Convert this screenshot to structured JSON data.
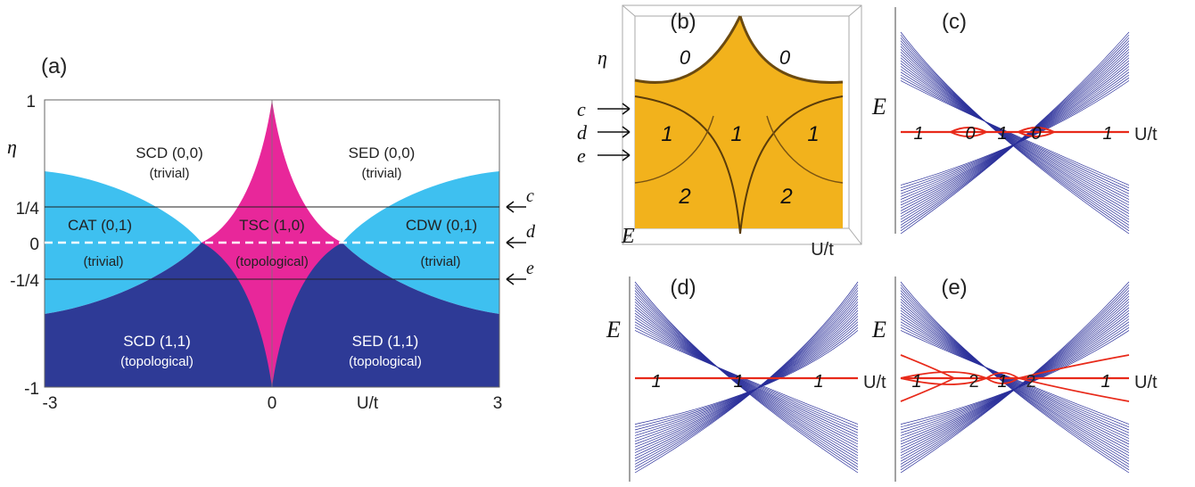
{
  "panel_a": {
    "label": "(a)",
    "y_axis_label": "η",
    "x_axis_label": "U/t",
    "y_ticks": [
      "1",
      "1/4",
      "0",
      "-1/4",
      "-1"
    ],
    "x_ticks": [
      "-3",
      "0",
      "3"
    ],
    "regions": {
      "scd00": {
        "name": "SCD (0,0)",
        "kind": "(trivial)"
      },
      "sed00": {
        "name": "SED (0,0)",
        "kind": "(trivial)"
      },
      "cat": {
        "name": "CAT (0,1)",
        "kind": "(trivial)"
      },
      "tsc": {
        "name": "TSC (1,0)",
        "kind": "(topological)"
      },
      "cdw": {
        "name": "CDW (0,1)",
        "kind": "(trivial)"
      },
      "scd11": {
        "name": "SCD (1,1)",
        "kind": "(topological)"
      },
      "sed11": {
        "name": "SED (1,1)",
        "kind": "(topological)"
      }
    },
    "markers": [
      "c",
      "d",
      "e"
    ],
    "colors": {
      "light_blue": "#3ec0f0",
      "dark_blue": "#2e3a96",
      "magenta": "#e8279a",
      "white": "#ffffff"
    }
  },
  "panel_b": {
    "label": "(b)",
    "y_axis_label": "η",
    "e_label": "E",
    "x_label": "U/t",
    "arrows": [
      "c",
      "d",
      "e"
    ],
    "numbers": {
      "top_left": "0",
      "top_right": "0",
      "mid_left": "1",
      "mid_center": "1",
      "mid_right": "1",
      "bot_left": "2",
      "bot_right": "2"
    },
    "colors": {
      "gold": "#f2b21c",
      "edge": "#6b4a10"
    }
  },
  "panel_c": {
    "label": "(c)",
    "y_label": "E",
    "x_label": "U/t",
    "numbers": [
      "1",
      "0",
      "1",
      "0",
      "1"
    ]
  },
  "panel_d": {
    "label": "(d)",
    "y_label": "E",
    "x_label": "U/t",
    "numbers": [
      "1",
      "1",
      "1"
    ]
  },
  "panel_e": {
    "label": "(e)",
    "y_label": "E",
    "x_label": "U/t",
    "numbers": [
      "1",
      "2",
      "1",
      "2",
      "1"
    ]
  },
  "band_colors": {
    "bands": "#2a2f9a",
    "edge": "#e82a1a"
  }
}
